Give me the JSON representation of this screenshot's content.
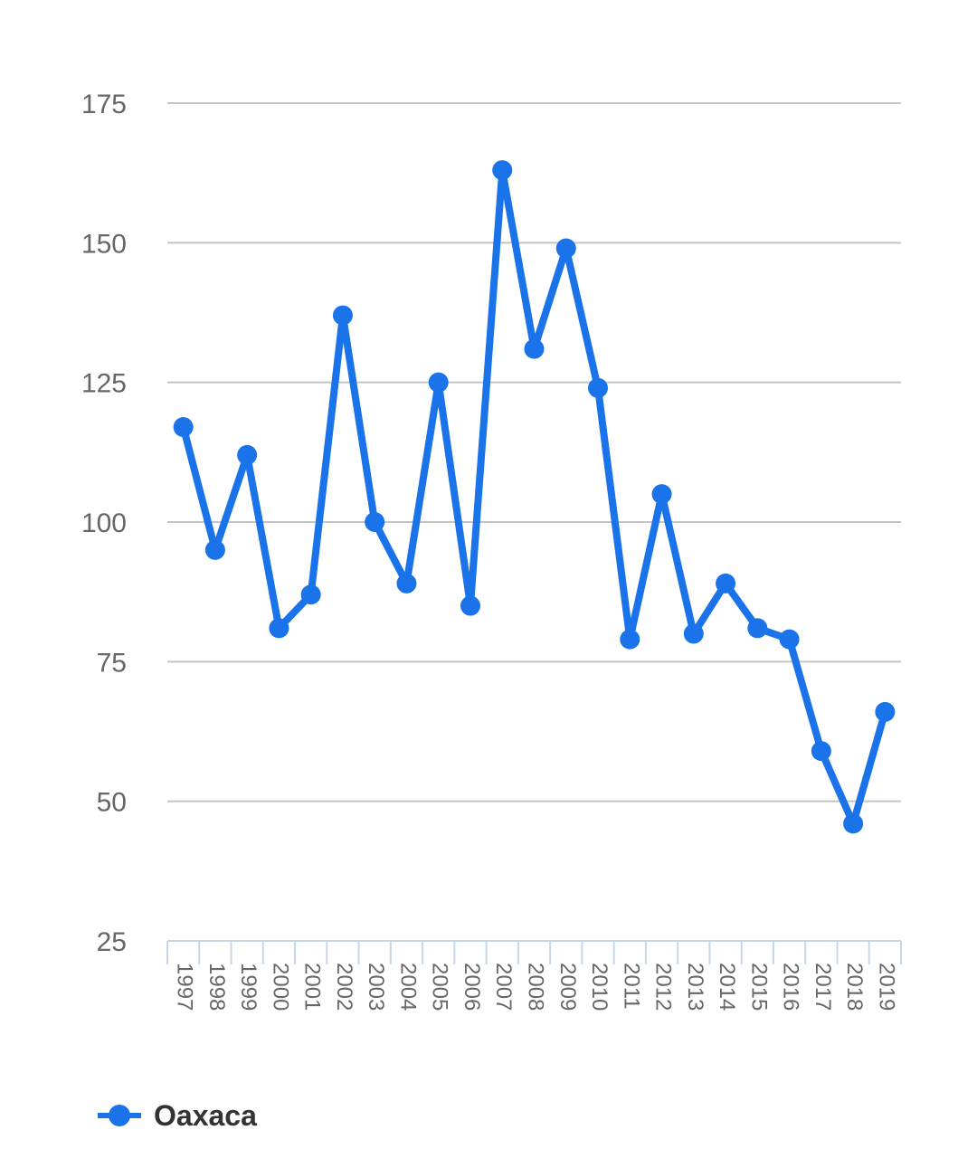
{
  "chart_data": {
    "type": "line",
    "title": "",
    "xlabel": "",
    "ylabel": "",
    "ylim": [
      25,
      175
    ],
    "yticks": [
      25,
      50,
      75,
      100,
      125,
      150,
      175
    ],
    "grid": true,
    "legend_position": "bottom-left",
    "x": [
      "1997",
      "1998",
      "1999",
      "2000",
      "2001",
      "2002",
      "2003",
      "2004",
      "2005",
      "2006",
      "2007",
      "2008",
      "2009",
      "2010",
      "2011",
      "2012",
      "2013",
      "2014",
      "2015",
      "2016",
      "2017",
      "2018",
      "2019"
    ],
    "series": [
      {
        "name": "Oaxaca",
        "color": "#1a73e8",
        "values": [
          117,
          95,
          112,
          81,
          87,
          137,
          100,
          89,
          125,
          85,
          163,
          131,
          149,
          124,
          79,
          105,
          80,
          89,
          81,
          79,
          59,
          46,
          66
        ]
      }
    ]
  }
}
